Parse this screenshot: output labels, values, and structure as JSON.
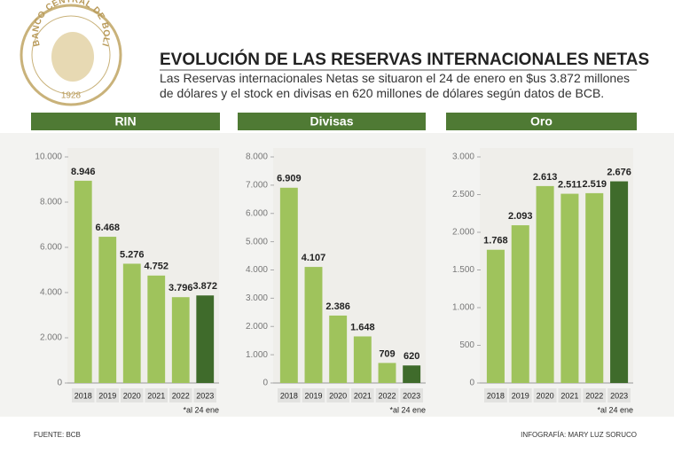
{
  "logo": {
    "name": "BANCO CENTRAL DE BOLIVIA",
    "year": "1928"
  },
  "title": "EVOLUCIÓN DE LAS RESERVAS INTERNACIONALES NETAS",
  "subtitle": "Las Reservas internacionales Netas se situaron el 24 de enero en $us 3.872 millones de dólares y el stock en divisas en 620 millones de dólares según datos de BCB.",
  "source": "FUENTE: BCB",
  "credit": "INFOGRAFÍA: MARY LUZ SORUCO",
  "chart_data": [
    {
      "type": "bar",
      "title": "RIN",
      "note": "*al 24 ene",
      "categories": [
        "2018",
        "2019",
        "2020",
        "2021",
        "2022",
        "2023"
      ],
      "values": [
        8946,
        6468,
        5276,
        4752,
        3796,
        3872
      ],
      "value_labels": [
        "8.946",
        "6.468",
        "5.276",
        "4.752",
        "3.796",
        "3.872"
      ],
      "colors": [
        "#9fc35c",
        "#9fc35c",
        "#9fc35c",
        "#9fc35c",
        "#9fc35c",
        "#3f6b2b"
      ],
      "ylim": [
        0,
        10000
      ],
      "yticks": [
        0,
        {
          "value": 2000,
          "label": "2.000"
        },
        {
          "value": 4000,
          "label": "4.000"
        },
        {
          "value": 6000,
          "label": "6.000"
        },
        {
          "value": 8000,
          "label": "8.000"
        },
        {
          "value": 10000,
          "label": "10.000"
        }
      ]
    },
    {
      "type": "bar",
      "title": "Divisas",
      "note": "*al 24 ene",
      "categories": [
        "2018",
        "2019",
        "2020",
        "2021",
        "2022",
        "2023"
      ],
      "values": [
        6909,
        4107,
        2386,
        1648,
        709,
        620
      ],
      "value_labels": [
        "6.909",
        "4.107",
        "2.386",
        "1.648",
        "709",
        "620"
      ],
      "colors": [
        "#9fc35c",
        "#9fc35c",
        "#9fc35c",
        "#9fc35c",
        "#9fc35c",
        "#3f6b2b"
      ],
      "ylim": [
        0,
        8000
      ],
      "yticks": [
        0,
        {
          "value": 1000,
          "label": "1.000"
        },
        {
          "value": 2000,
          "label": "2.000"
        },
        {
          "value": 3000,
          "label": "3.000"
        },
        {
          "value": 4000,
          "label": "4.000"
        },
        {
          "value": 5000,
          "label": "5.000"
        },
        {
          "value": 6000,
          "label": "6.000"
        },
        {
          "value": 7000,
          "label": "7.000"
        },
        {
          "value": 8000,
          "label": "8.000"
        }
      ]
    },
    {
      "type": "bar",
      "title": "Oro",
      "note": "*al 24 ene",
      "categories": [
        "2018",
        "2019",
        "2020",
        "2021",
        "2022",
        "2023"
      ],
      "values": [
        1768,
        2093,
        2613,
        2511,
        2519,
        2676
      ],
      "value_labels": [
        "1.768",
        "2.093",
        "2.613",
        "2.511",
        "2.519",
        "2.676"
      ],
      "colors": [
        "#9fc35c",
        "#9fc35c",
        "#9fc35c",
        "#9fc35c",
        "#9fc35c",
        "#3f6b2b"
      ],
      "ylim": [
        0,
        3000
      ],
      "yticks": [
        0,
        500,
        {
          "value": 1000,
          "label": "1.000"
        },
        {
          "value": 1500,
          "label": "1.500"
        },
        {
          "value": 2000,
          "label": "2.000"
        },
        {
          "value": 2500,
          "label": "2.500"
        },
        {
          "value": 3000,
          "label": "3.000"
        }
      ]
    }
  ]
}
